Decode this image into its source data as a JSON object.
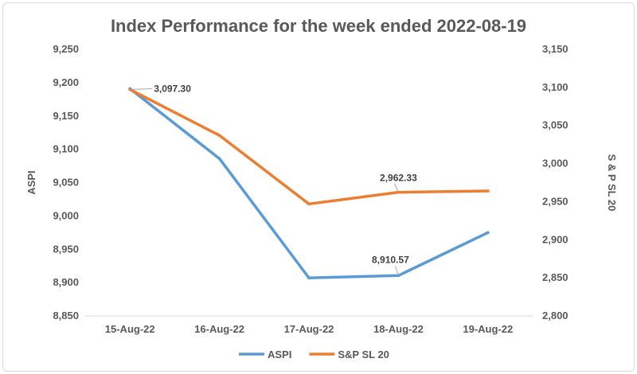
{
  "chart_data": {
    "type": "line",
    "title": "Index Performance for the week ended 2022-08-19",
    "categories": [
      "15-Aug-22",
      "16-Aug-22",
      "17-Aug-22",
      "18-Aug-22",
      "19-Aug-22"
    ],
    "y_left": {
      "label": "ASPI",
      "range": [
        8850,
        9250
      ],
      "ticks": [
        "8,850",
        "8,900",
        "8,950",
        "9,000",
        "9,050",
        "9,100",
        "9,150",
        "9,200",
        "9,250"
      ]
    },
    "y_right": {
      "label": "S & P SL 20",
      "range": [
        2800,
        3150
      ],
      "ticks": [
        "2,800",
        "2,850",
        "2,900",
        "2,950",
        "3,000",
        "3,050",
        "3,100",
        "3,150"
      ]
    },
    "series": [
      {
        "name": "ASPI",
        "axis": "left",
        "color": "#5b9bd5",
        "values": [
          9191,
          9086,
          8907,
          8910.57,
          8975
        ],
        "data_labels": [
          null,
          null,
          null,
          "8,910.57",
          null
        ]
      },
      {
        "name": "S&P SL 20",
        "axis": "right",
        "color": "#ed7d31",
        "values": [
          3097.3,
          3037,
          2947,
          2962.33,
          2964
        ],
        "data_labels": [
          "3,097.30",
          null,
          null,
          "2,962.33",
          null
        ]
      }
    ],
    "grid": false,
    "legend": "bottom"
  }
}
